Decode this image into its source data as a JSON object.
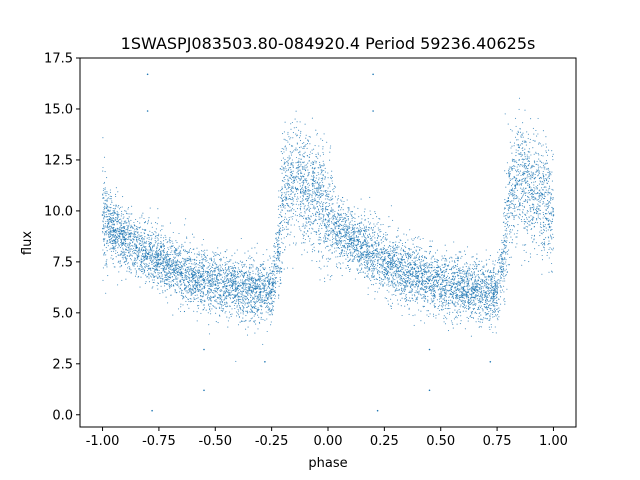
{
  "chart_data": {
    "type": "scatter",
    "title": "1SWASPJ083503.80-084920.4 Period 59236.40625s",
    "xlabel": "phase",
    "ylabel": "flux",
    "xlim": [
      -1.1,
      1.1
    ],
    "ylim": [
      -0.6,
      17.5
    ],
    "xticks": [
      "-1.00",
      "-0.75",
      "-0.50",
      "-0.25",
      "0.00",
      "0.25",
      "0.50",
      "0.75",
      "1.00"
    ],
    "yticks": [
      "0.0",
      "2.5",
      "5.0",
      "7.5",
      "10.0",
      "12.5",
      "15.0",
      "17.5"
    ],
    "grid": false,
    "legend": "none",
    "point_color": "#1f77b4",
    "series": [
      {
        "values": [
          [
            -1.0,
            9.8
          ],
          [
            -0.95,
            9.0
          ],
          [
            -0.9,
            8.6
          ],
          [
            -0.85,
            8.2
          ],
          [
            -0.8,
            7.9
          ],
          [
            -0.75,
            7.6
          ],
          [
            -0.7,
            7.3
          ],
          [
            -0.65,
            7.0
          ],
          [
            -0.6,
            6.8
          ],
          [
            -0.55,
            6.6
          ],
          [
            -0.5,
            6.4
          ],
          [
            -0.45,
            6.3
          ],
          [
            -0.4,
            6.2
          ],
          [
            -0.35,
            6.1
          ],
          [
            -0.3,
            6.0
          ],
          [
            -0.25,
            6.0
          ],
          [
            -0.22,
            8.0
          ],
          [
            -0.2,
            10.5
          ],
          [
            -0.15,
            11.5
          ],
          [
            -0.1,
            11.0
          ],
          [
            -0.05,
            10.8
          ],
          [
            0.0,
            9.8
          ],
          [
            0.05,
            9.0
          ],
          [
            0.1,
            8.6
          ],
          [
            0.15,
            8.2
          ],
          [
            0.2,
            7.9
          ],
          [
            0.25,
            7.6
          ],
          [
            0.3,
            7.3
          ],
          [
            0.35,
            7.0
          ],
          [
            0.4,
            6.8
          ],
          [
            0.45,
            6.6
          ],
          [
            0.5,
            6.4
          ],
          [
            0.55,
            6.3
          ],
          [
            0.6,
            6.2
          ],
          [
            0.65,
            6.1
          ],
          [
            0.7,
            6.0
          ],
          [
            0.75,
            6.0
          ],
          [
            0.78,
            8.0
          ],
          [
            0.8,
            10.5
          ],
          [
            0.85,
            11.5
          ],
          [
            0.9,
            11.0
          ],
          [
            0.95,
            10.8
          ],
          [
            1.0,
            9.8
          ],
          [
            -0.8,
            16.7
          ],
          [
            0.2,
            16.7
          ],
          [
            -0.8,
            14.9
          ],
          [
            0.2,
            14.9
          ],
          [
            -0.55,
            3.2
          ],
          [
            0.45,
            3.2
          ],
          [
            -0.28,
            2.6
          ],
          [
            0.72,
            2.6
          ],
          [
            -0.55,
            1.2
          ],
          [
            0.45,
            1.2
          ],
          [
            -0.78,
            0.2
          ],
          [
            0.22,
            0.2
          ]
        ]
      }
    ]
  }
}
